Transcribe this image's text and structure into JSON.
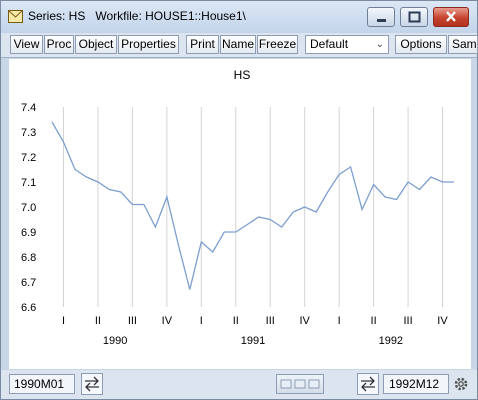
{
  "window": {
    "title": "Series: HS   Workfile: HOUSE1::House1\\"
  },
  "toolbar": {
    "view": "View",
    "proc": "Proc",
    "object": "Object",
    "properties": "Properties",
    "print": "Print",
    "name": "Name",
    "freeze": "Freeze",
    "dropdown_value": "Default",
    "options": "Options",
    "sample": "Sam"
  },
  "status": {
    "start": "1990M01",
    "end": "1992M12"
  },
  "chart_data": {
    "type": "line",
    "title": "HS",
    "xlabel": "",
    "ylabel": "",
    "ylim": [
      6.6,
      7.4
    ],
    "yticks": [
      "7.4",
      "7.3",
      "7.2",
      "7.1",
      "7.0",
      "6.9",
      "6.8",
      "6.7",
      "6.6"
    ],
    "quarter_labels": [
      "I",
      "II",
      "III",
      "IV",
      "I",
      "II",
      "III",
      "IV",
      "I",
      "II",
      "III",
      "IV"
    ],
    "year_labels": [
      "1990",
      "1991",
      "1992"
    ],
    "series": [
      {
        "name": "HS",
        "color": "#7c9fcf",
        "values": [
          7.34,
          7.26,
          7.15,
          7.12,
          7.1,
          7.07,
          7.06,
          7.01,
          7.01,
          6.92,
          7.04,
          6.85,
          6.67,
          6.86,
          6.82,
          6.9,
          6.9,
          6.93,
          6.96,
          6.95,
          6.92,
          6.98,
          7.0,
          6.98,
          7.06,
          7.13,
          7.16,
          6.99,
          7.09,
          7.04,
          7.03,
          7.1,
          7.07,
          7.12,
          7.1,
          7.1
        ]
      }
    ]
  }
}
